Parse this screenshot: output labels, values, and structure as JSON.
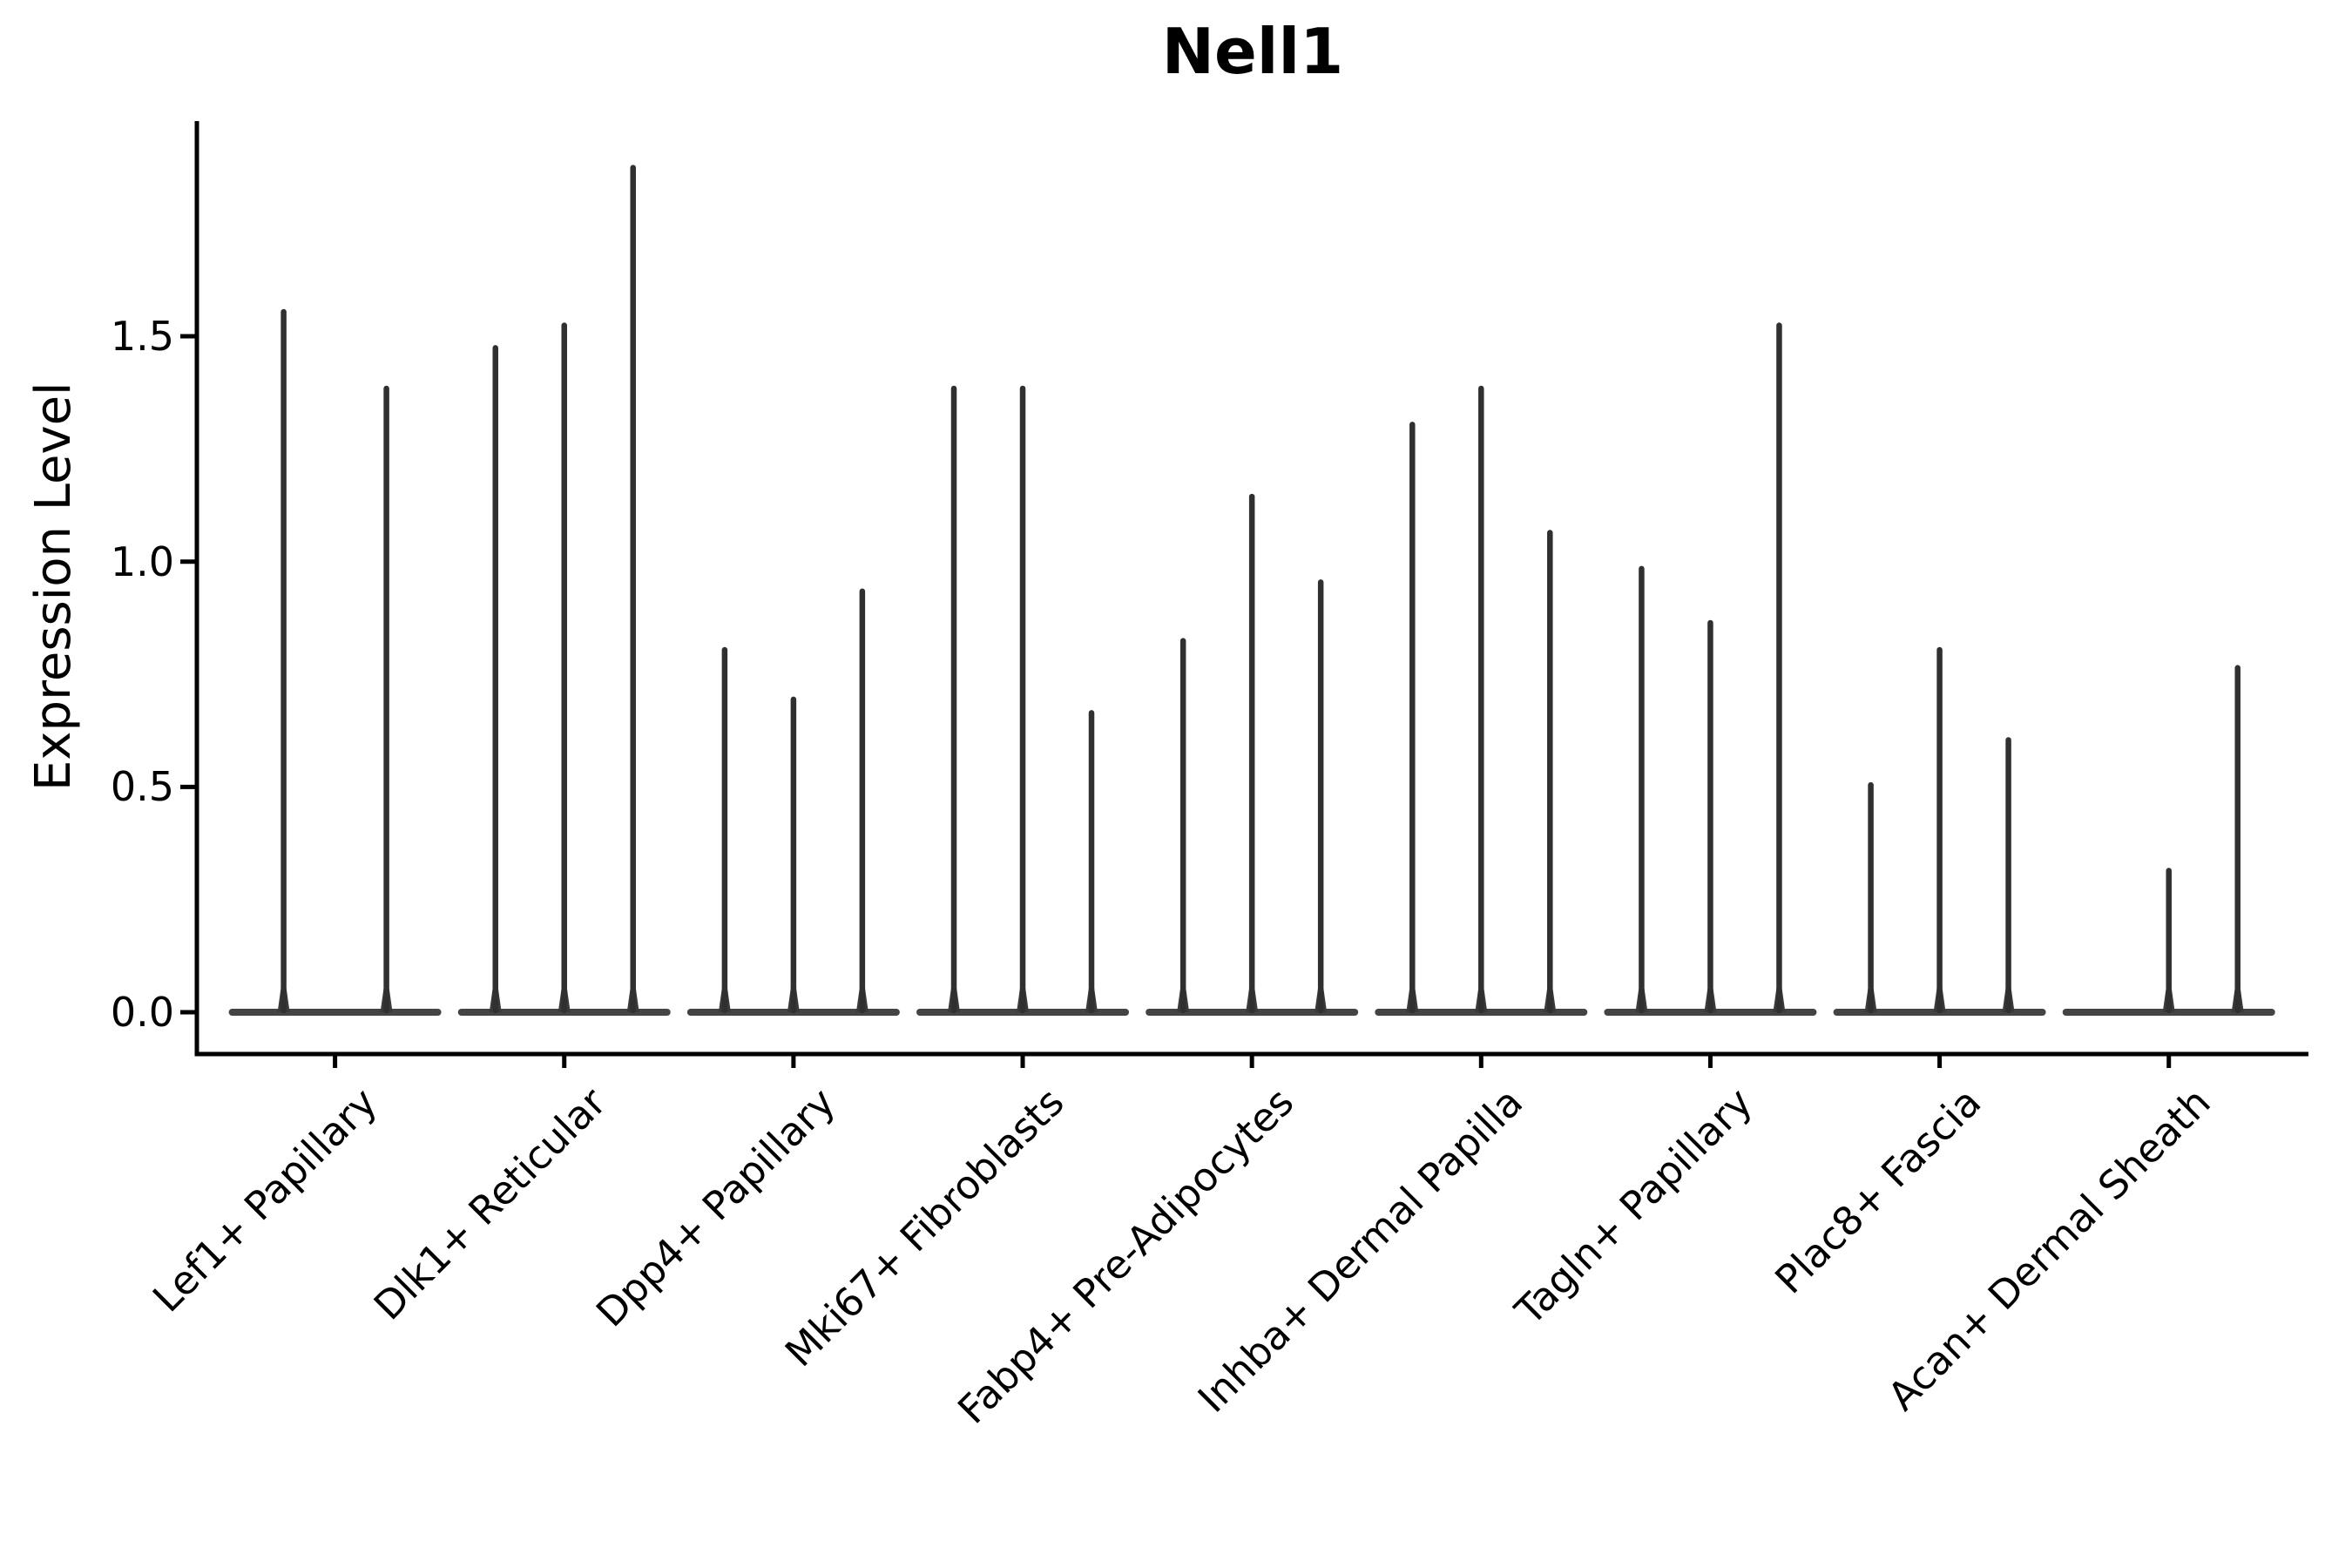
{
  "chart_data": {
    "type": "violin",
    "title": "Nell1",
    "ylabel": "Expression Level",
    "xlabel": "",
    "grid": false,
    "legend": "none",
    "y_ticks": [
      "0.0",
      "0.5",
      "1.0",
      "1.5"
    ],
    "y_tick_values": [
      0.0,
      0.5,
      1.0,
      1.5
    ],
    "ylim": [
      0,
      1.98
    ],
    "categories": [
      "Lef1+ Papillary",
      "Dlk1+ Reticular",
      "Dpp4+ Papillary",
      "Mki67+ Fibroblasts",
      "Fabp4+ Pre-Adipocytes",
      "Inhba+ Dermal Papilla",
      "Tagln+ Papillary",
      "Plac8+ Fascia",
      "Acan+ Dermal Sheath"
    ],
    "groups": [
      {
        "category": "Lef1+ Papillary",
        "violins": [
          {
            "value": 1.56,
            "dx": -59
          },
          {
            "value": 1.39,
            "dx": 59
          }
        ]
      },
      {
        "category": "Dlk1+ Reticular",
        "violins": [
          {
            "value": 1.48,
            "dx": -79
          },
          {
            "value": 1.53,
            "dx": 0
          },
          {
            "value": 1.88,
            "dx": 79
          }
        ]
      },
      {
        "category": "Dpp4+ Papillary",
        "violins": [
          {
            "value": 0.81,
            "dx": -79
          },
          {
            "value": 0.7,
            "dx": 0
          },
          {
            "value": 0.94,
            "dx": 79
          }
        ]
      },
      {
        "category": "Mki67+ Fibroblasts",
        "violins": [
          {
            "value": 1.39,
            "dx": -79
          },
          {
            "value": 1.39,
            "dx": 0
          },
          {
            "value": 0.67,
            "dx": 79
          }
        ]
      },
      {
        "category": "Fabp4+ Pre-Adipocytes",
        "violins": [
          {
            "value": 0.83,
            "dx": -79
          },
          {
            "value": 1.15,
            "dx": 0
          },
          {
            "value": 0.96,
            "dx": 79
          }
        ]
      },
      {
        "category": "Inhba+ Dermal Papilla",
        "violins": [
          {
            "value": 1.31,
            "dx": -79
          },
          {
            "value": 1.39,
            "dx": 0
          },
          {
            "value": 1.07,
            "dx": 79
          }
        ]
      },
      {
        "category": "Tagln+ Papillary",
        "violins": [
          {
            "value": 0.99,
            "dx": -79
          },
          {
            "value": 0.87,
            "dx": 0
          },
          {
            "value": 1.53,
            "dx": 79
          }
        ]
      },
      {
        "category": "Plac8+ Fascia",
        "violins": [
          {
            "value": 0.51,
            "dx": -79
          },
          {
            "value": 0.81,
            "dx": 0
          },
          {
            "value": 0.61,
            "dx": 79
          }
        ]
      },
      {
        "category": "Acan+ Dermal Sheath",
        "violins": [
          {
            "value": 0.32,
            "dx": 0
          },
          {
            "value": 0.77,
            "dx": 79
          }
        ]
      }
    ],
    "colors": {
      "axis": "#000000",
      "text": "#000000",
      "violin": "#303030",
      "baseline": "#3a3a3a",
      "background": "#ffffff"
    }
  }
}
